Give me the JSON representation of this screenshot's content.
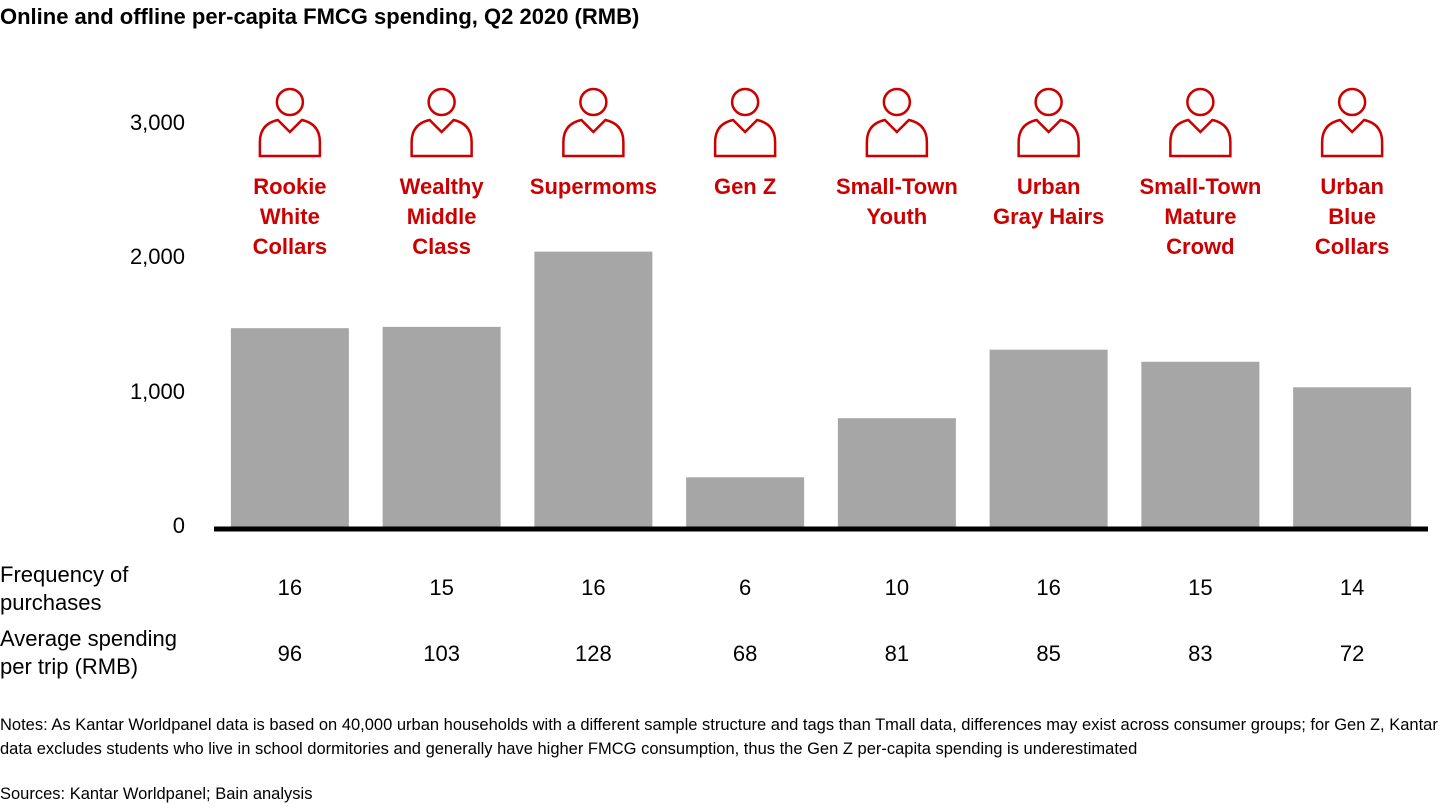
{
  "chart_data": {
    "type": "bar",
    "title": "Online and offline per-capita FMCG spending, Q2 2020 (RMB)",
    "categories": [
      "Rookie White Collars",
      "Wealthy Middle Class",
      "Supermoms",
      "Gen Z",
      "Small-Town Youth",
      "Urban Gray Hairs",
      "Small-Town Mature Crowd",
      "Urban Blue Collars"
    ],
    "category_lines": [
      [
        "Rookie",
        "White",
        "Collars"
      ],
      [
        "Wealthy",
        "Middle",
        "Class"
      ],
      [
        "Supermoms"
      ],
      [
        "Gen Z"
      ],
      [
        "Small-Town",
        "Youth"
      ],
      [
        "Urban",
        "Gray Hairs"
      ],
      [
        "Small-Town",
        "Mature",
        "Crowd"
      ],
      [
        "Urban",
        "Blue",
        "Collars"
      ]
    ],
    "category_icons": [
      "office-worker-briefcase-icon",
      "man-with-glasses-tie-icon",
      "mother-with-baby-icon",
      "youth-headphones-sunglasses-icon",
      "young-man-icon",
      "city-elderly-couple-icon",
      "village-mature-couple-icon",
      "worker-helmet-gear-bulb-icon"
    ],
    "values": [
      1480,
      1490,
      2050,
      370,
      810,
      1320,
      1230,
      1040
    ],
    "ylim": [
      0,
      3000
    ],
    "yticks": [
      0,
      1000,
      2000,
      3000
    ],
    "ytick_labels": [
      "0",
      "1,000",
      "2,000",
      "3,000"
    ],
    "grid": false,
    "bar_color": "#a6a6a6",
    "label_color": "#cc0000",
    "table": {
      "rows": [
        {
          "label": [
            "Frequency of",
            "purchases"
          ],
          "values": [
            "16",
            "15",
            "16",
            "6",
            "10",
            "16",
            "15",
            "14"
          ]
        },
        {
          "label": [
            "Average spending",
            "per trip (RMB)"
          ],
          "values": [
            "96",
            "103",
            "128",
            "68",
            "81",
            "85",
            "83",
            "72"
          ]
        }
      ]
    }
  },
  "notes": "Notes: As Kantar Worldpanel data is based on 40,000 urban households with a different sample structure and tags than Tmall data, differences may exist across consumer groups; for Gen Z, Kantar data excludes students who live in school dormitories and generally have higher FMCG consumption, thus the Gen Z per-capita spending is underestimated",
  "sources": "Sources: Kantar Worldpanel; Bain analysis"
}
